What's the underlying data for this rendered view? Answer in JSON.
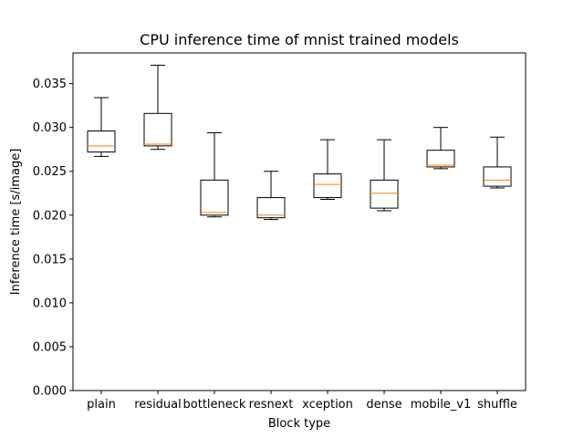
{
  "chart_data": {
    "type": "boxplot",
    "title": "CPU inference time of mnist trained models",
    "xlabel": "Block type",
    "ylabel": "Inference time [s/image]",
    "ylim": [
      0.0,
      0.0385
    ],
    "yticks": [
      "0.000",
      "0.005",
      "0.010",
      "0.015",
      "0.020",
      "0.025",
      "0.030",
      "0.035"
    ],
    "ytick_values": [
      0.0,
      0.005,
      0.01,
      0.015,
      0.02,
      0.025,
      0.03,
      0.035
    ],
    "grid": false,
    "categories": [
      "plain",
      "residual",
      "bottleneck",
      "resnext",
      "xception",
      "dense",
      "mobile_v1",
      "shuffle"
    ],
    "boxes": [
      {
        "category": "plain",
        "whisker_low": 0.0267,
        "q1": 0.0272,
        "median": 0.0279,
        "q3": 0.0296,
        "whisker_high": 0.0334
      },
      {
        "category": "residual",
        "whisker_low": 0.0275,
        "q1": 0.0279,
        "median": 0.0281,
        "q3": 0.0316,
        "whisker_high": 0.0371
      },
      {
        "category": "bottleneck",
        "whisker_low": 0.0198,
        "q1": 0.02,
        "median": 0.0203,
        "q3": 0.024,
        "whisker_high": 0.0294
      },
      {
        "category": "resnext",
        "whisker_low": 0.0195,
        "q1": 0.0197,
        "median": 0.02,
        "q3": 0.022,
        "whisker_high": 0.025
      },
      {
        "category": "xception",
        "whisker_low": 0.0218,
        "q1": 0.022,
        "median": 0.0235,
        "q3": 0.0247,
        "whisker_high": 0.0286
      },
      {
        "category": "dense",
        "whisker_low": 0.0205,
        "q1": 0.0208,
        "median": 0.0225,
        "q3": 0.024,
        "whisker_high": 0.0286
      },
      {
        "category": "mobile_v1",
        "whisker_low": 0.0253,
        "q1": 0.0255,
        "median": 0.0257,
        "q3": 0.0274,
        "whisker_high": 0.03
      },
      {
        "category": "shuffle",
        "whisker_low": 0.0231,
        "q1": 0.0233,
        "median": 0.024,
        "q3": 0.0255,
        "whisker_high": 0.0289
      }
    ],
    "colors": {
      "box": "#000000",
      "median": "#ff7f0e",
      "background": "#ffffff"
    }
  }
}
